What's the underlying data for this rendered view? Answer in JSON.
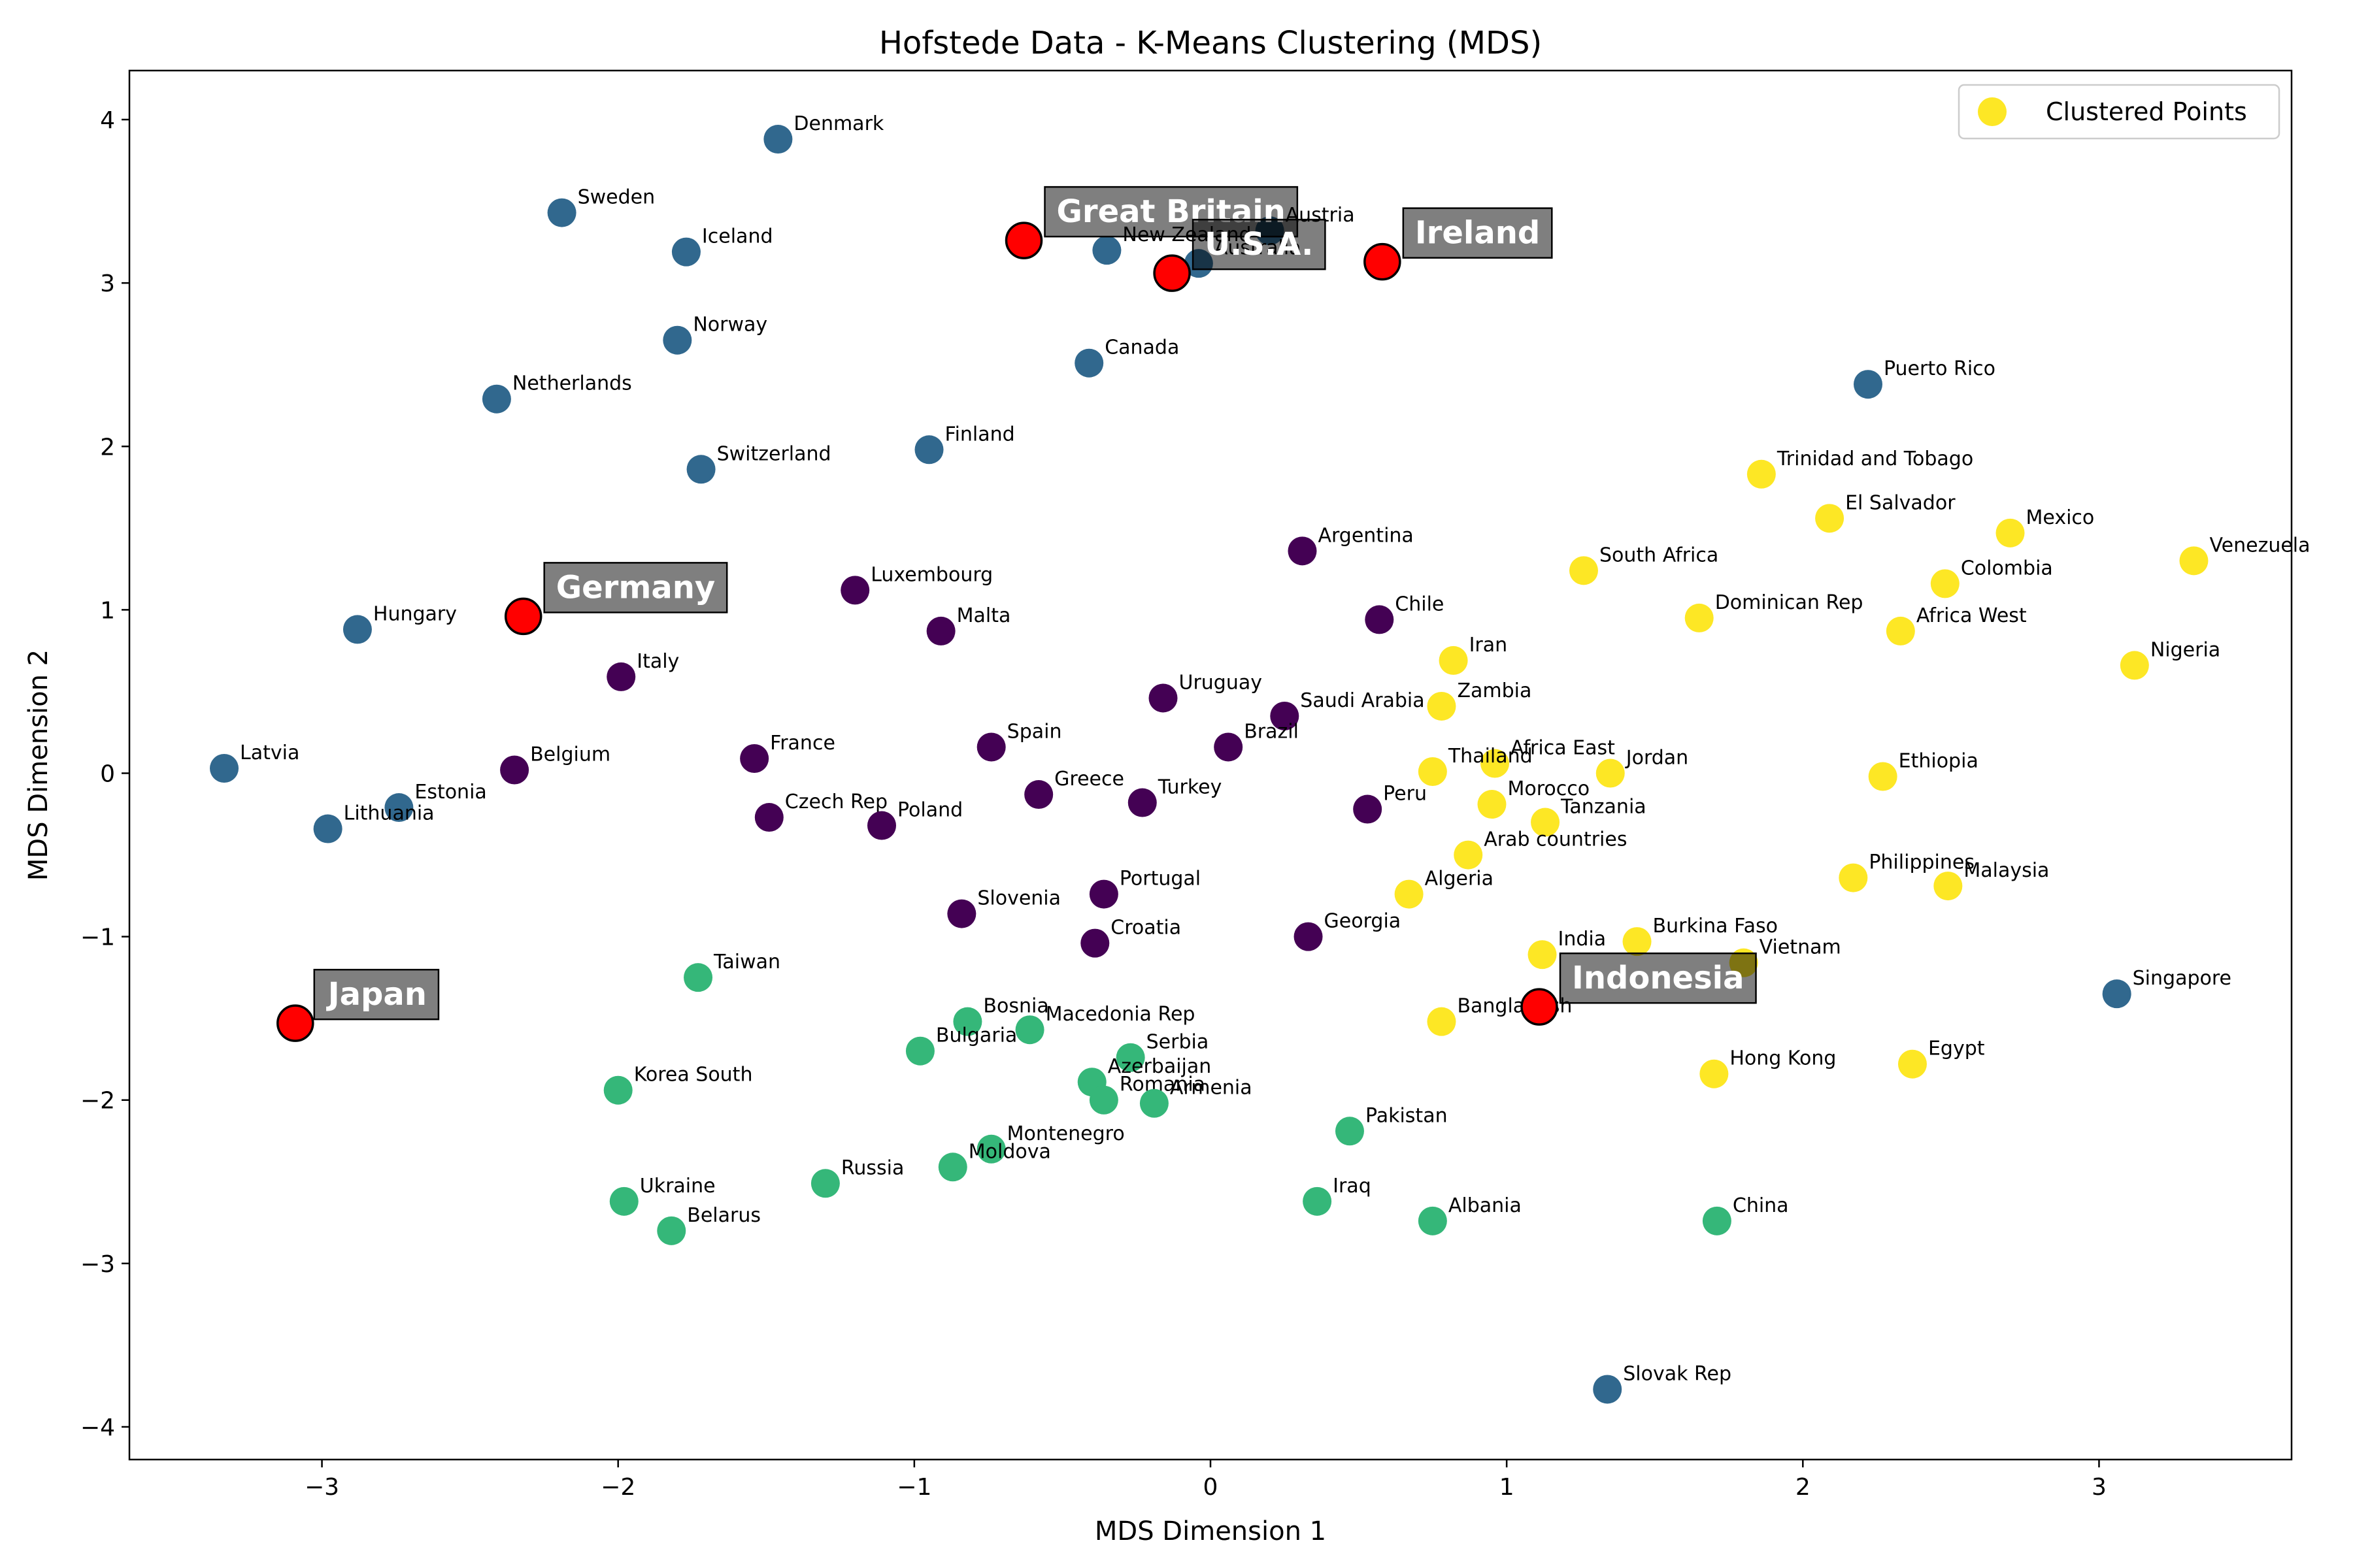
{
  "chart_data": {
    "type": "scatter",
    "title": "Hofstede Data - K-Means Clustering (MDS)",
    "xlabel": "MDS Dimension 1",
    "ylabel": "MDS Dimension 2",
    "xlim": [
      -3.65,
      3.65
    ],
    "ylim": [
      -4.2,
      4.3
    ],
    "xticks": [
      -3,
      -2,
      -1,
      0,
      1,
      2,
      3
    ],
    "yticks": [
      -4,
      -3,
      -2,
      -1,
      0,
      1,
      2,
      3,
      4
    ],
    "xtick_labels": [
      "−3",
      "−2",
      "−1",
      "0",
      "1",
      "2",
      "3"
    ],
    "ytick_labels": [
      "−4",
      "−3",
      "−2",
      "−1",
      "0",
      "1",
      "2",
      "3",
      "4"
    ],
    "grid": false,
    "legend": {
      "label": "Clustered Points",
      "placement": "top-right",
      "marker_color": "#fde725"
    },
    "cluster_colors": {
      "0": "#440154",
      "1": "#31688e",
      "2": "#35b779",
      "3": "#fde725"
    },
    "highlight_color": "#ff0000",
    "points": [
      {
        "name": "Denmark",
        "x": -1.46,
        "y": 3.88,
        "cluster": 1
      },
      {
        "name": "Sweden",
        "x": -2.19,
        "y": 3.43,
        "cluster": 1
      },
      {
        "name": "Iceland",
        "x": -1.77,
        "y": 3.19,
        "cluster": 1
      },
      {
        "name": "New Zealand",
        "x": -0.35,
        "y": 3.2,
        "cluster": 1
      },
      {
        "name": "Austria",
        "x": 0.2,
        "y": 3.32,
        "cluster": 1
      },
      {
        "name": "Australia",
        "x": -0.04,
        "y": 3.12,
        "cluster": 1
      },
      {
        "name": "Norway",
        "x": -1.8,
        "y": 2.65,
        "cluster": 1
      },
      {
        "name": "Canada",
        "x": -0.41,
        "y": 2.51,
        "cluster": 1
      },
      {
        "name": "Netherlands",
        "x": -2.41,
        "y": 2.29,
        "cluster": 1
      },
      {
        "name": "Finland",
        "x": -0.95,
        "y": 1.98,
        "cluster": 1
      },
      {
        "name": "Switzerland",
        "x": -1.72,
        "y": 1.86,
        "cluster": 1
      },
      {
        "name": "Hungary",
        "x": -2.88,
        "y": 0.88,
        "cluster": 1
      },
      {
        "name": "Latvia",
        "x": -3.33,
        "y": 0.03,
        "cluster": 1
      },
      {
        "name": "Estonia",
        "x": -2.74,
        "y": -0.21,
        "cluster": 1
      },
      {
        "name": "Lithuania",
        "x": -2.98,
        "y": -0.34,
        "cluster": 1
      },
      {
        "name": "Puerto Rico",
        "x": 2.22,
        "y": 2.38,
        "cluster": 1
      },
      {
        "name": "Singapore",
        "x": 3.06,
        "y": -1.35,
        "cluster": 1
      },
      {
        "name": "Slovak Rep",
        "x": 1.34,
        "y": -3.77,
        "cluster": 1
      },
      {
        "name": "Argentina",
        "x": 0.31,
        "y": 1.36,
        "cluster": 0
      },
      {
        "name": "Luxembourg",
        "x": -1.2,
        "y": 1.12,
        "cluster": 0
      },
      {
        "name": "Chile",
        "x": 0.57,
        "y": 0.94,
        "cluster": 0
      },
      {
        "name": "Malta",
        "x": -0.91,
        "y": 0.87,
        "cluster": 0
      },
      {
        "name": "Italy",
        "x": -1.99,
        "y": 0.59,
        "cluster": 0
      },
      {
        "name": "Uruguay",
        "x": -0.16,
        "y": 0.46,
        "cluster": 0
      },
      {
        "name": "Saudi Arabia",
        "x": 0.25,
        "y": 0.35,
        "cluster": 0
      },
      {
        "name": "Spain",
        "x": -0.74,
        "y": 0.16,
        "cluster": 0
      },
      {
        "name": "Brazil",
        "x": 0.06,
        "y": 0.16,
        "cluster": 0
      },
      {
        "name": "France",
        "x": -1.54,
        "y": 0.09,
        "cluster": 0
      },
      {
        "name": "Belgium",
        "x": -2.35,
        "y": 0.02,
        "cluster": 0
      },
      {
        "name": "Greece",
        "x": -0.58,
        "y": -0.13,
        "cluster": 0
      },
      {
        "name": "Turkey",
        "x": -0.23,
        "y": -0.18,
        "cluster": 0
      },
      {
        "name": "Peru",
        "x": 0.53,
        "y": -0.22,
        "cluster": 0
      },
      {
        "name": "Czech Rep",
        "x": -1.49,
        "y": -0.27,
        "cluster": 0
      },
      {
        "name": "Poland",
        "x": -1.11,
        "y": -0.32,
        "cluster": 0
      },
      {
        "name": "Portugal",
        "x": -0.36,
        "y": -0.74,
        "cluster": 0
      },
      {
        "name": "Slovenia",
        "x": -0.84,
        "y": -0.86,
        "cluster": 0
      },
      {
        "name": "Croatia",
        "x": -0.39,
        "y": -1.04,
        "cluster": 0
      },
      {
        "name": "Georgia",
        "x": 0.33,
        "y": -1.0,
        "cluster": 0
      },
      {
        "name": "Taiwan",
        "x": -1.73,
        "y": -1.25,
        "cluster": 2
      },
      {
        "name": "Bosnia",
        "x": -0.82,
        "y": -1.52,
        "cluster": 2
      },
      {
        "name": "Macedonia Rep",
        "x": -0.61,
        "y": -1.57,
        "cluster": 2
      },
      {
        "name": "Bulgaria",
        "x": -0.98,
        "y": -1.7,
        "cluster": 2
      },
      {
        "name": "Serbia",
        "x": -0.27,
        "y": -1.74,
        "cluster": 2
      },
      {
        "name": "Azerbaijan",
        "x": -0.4,
        "y": -1.89,
        "cluster": 2
      },
      {
        "name": "Romania",
        "x": -0.36,
        "y": -2.0,
        "cluster": 2
      },
      {
        "name": "Armenia",
        "x": -0.19,
        "y": -2.02,
        "cluster": 2
      },
      {
        "name": "Korea South",
        "x": -2.0,
        "y": -1.94,
        "cluster": 2
      },
      {
        "name": "Pakistan",
        "x": 0.47,
        "y": -2.19,
        "cluster": 2
      },
      {
        "name": "Montenegro",
        "x": -0.74,
        "y": -2.3,
        "cluster": 2
      },
      {
        "name": "Moldova",
        "x": -0.87,
        "y": -2.41,
        "cluster": 2
      },
      {
        "name": "Russia",
        "x": -1.3,
        "y": -2.51,
        "cluster": 2
      },
      {
        "name": "Ukraine",
        "x": -1.98,
        "y": -2.62,
        "cluster": 2
      },
      {
        "name": "Iraq",
        "x": 0.36,
        "y": -2.62,
        "cluster": 2
      },
      {
        "name": "Albania",
        "x": 0.75,
        "y": -2.74,
        "cluster": 2
      },
      {
        "name": "China",
        "x": 1.71,
        "y": -2.74,
        "cluster": 2
      },
      {
        "name": "Belarus",
        "x": -1.82,
        "y": -2.8,
        "cluster": 2
      },
      {
        "name": "Trinidad and Tobago",
        "x": 1.86,
        "y": 1.83,
        "cluster": 3
      },
      {
        "name": "El Salvador",
        "x": 2.09,
        "y": 1.56,
        "cluster": 3
      },
      {
        "name": "Mexico",
        "x": 2.7,
        "y": 1.47,
        "cluster": 3
      },
      {
        "name": "Venezuela",
        "x": 3.32,
        "y": 1.3,
        "cluster": 3
      },
      {
        "name": "South Africa",
        "x": 1.26,
        "y": 1.24,
        "cluster": 3
      },
      {
        "name": "Colombia",
        "x": 2.48,
        "y": 1.16,
        "cluster": 3
      },
      {
        "name": "Dominican Rep",
        "x": 1.65,
        "y": 0.95,
        "cluster": 3
      },
      {
        "name": "Africa West",
        "x": 2.33,
        "y": 0.87,
        "cluster": 3
      },
      {
        "name": "Iran",
        "x": 0.82,
        "y": 0.69,
        "cluster": 3
      },
      {
        "name": "Nigeria",
        "x": 3.12,
        "y": 0.66,
        "cluster": 3
      },
      {
        "name": "Zambia",
        "x": 0.78,
        "y": 0.41,
        "cluster": 3
      },
      {
        "name": "Africa East",
        "x": 0.96,
        "y": 0.06,
        "cluster": 3
      },
      {
        "name": "Thailand",
        "x": 0.75,
        "y": 0.01,
        "cluster": 3
      },
      {
        "name": "Jordan",
        "x": 1.35,
        "y": 0.0,
        "cluster": 3
      },
      {
        "name": "Ethiopia",
        "x": 2.27,
        "y": -0.02,
        "cluster": 3
      },
      {
        "name": "Morocco",
        "x": 0.95,
        "y": -0.19,
        "cluster": 3
      },
      {
        "name": "Tanzania",
        "x": 1.13,
        "y": -0.3,
        "cluster": 3
      },
      {
        "name": "Arab countries",
        "x": 0.87,
        "y": -0.5,
        "cluster": 3
      },
      {
        "name": "Philippines",
        "x": 2.17,
        "y": -0.64,
        "cluster": 3
      },
      {
        "name": "Malaysia",
        "x": 2.49,
        "y": -0.69,
        "cluster": 3
      },
      {
        "name": "Algeria",
        "x": 0.67,
        "y": -0.74,
        "cluster": 3
      },
      {
        "name": "Burkina Faso",
        "x": 1.44,
        "y": -1.03,
        "cluster": 3
      },
      {
        "name": "India",
        "x": 1.12,
        "y": -1.11,
        "cluster": 3
      },
      {
        "name": "Vietnam",
        "x": 1.8,
        "y": -1.16,
        "cluster": 3
      },
      {
        "name": "Bangladesh",
        "x": 0.78,
        "y": -1.52,
        "cluster": 3
      },
      {
        "name": "Hong Kong",
        "x": 1.7,
        "y": -1.84,
        "cluster": 3
      },
      {
        "name": "Egypt",
        "x": 2.37,
        "y": -1.78,
        "cluster": 3
      }
    ],
    "highlighted": [
      {
        "name": "Great Britain",
        "x": -0.63,
        "y": 3.26
      },
      {
        "name": "U.S.A.",
        "x": -0.13,
        "y": 3.06
      },
      {
        "name": "Ireland",
        "x": 0.58,
        "y": 3.13
      },
      {
        "name": "Germany",
        "x": -2.32,
        "y": 0.96
      },
      {
        "name": "Japan",
        "x": -3.09,
        "y": -1.53
      },
      {
        "name": "Indonesia",
        "x": 1.11,
        "y": -1.43
      }
    ]
  }
}
